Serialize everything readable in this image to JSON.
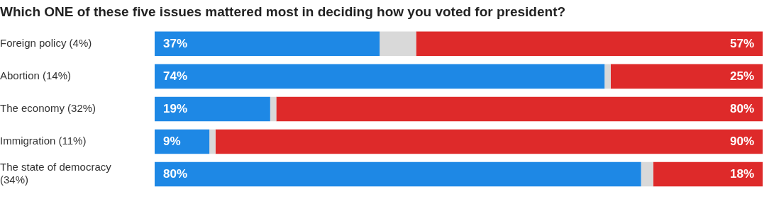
{
  "chart_data": {
    "type": "bar",
    "orientation": "horizontal",
    "stacked": true,
    "title": "Which ONE of these five issues mattered most in deciding how you voted for president?",
    "categories": [
      "Foreign policy (4%)",
      "Abortion (14%)",
      "The economy (32%)",
      "Immigration (11%)",
      "The state of democracy (34%)"
    ],
    "xlim": [
      0,
      100
    ],
    "tick_labels": "y",
    "series": [
      {
        "color": "#1e88e5",
        "values": [
          37,
          74,
          19,
          9,
          80
        ],
        "value_labels": [
          "37%",
          "74%",
          "19%",
          "9%",
          "80%"
        ]
      },
      {
        "color": "#d9d9d9",
        "values": [
          6,
          1,
          1,
          1,
          2
        ],
        "value_labels": [
          null,
          null,
          null,
          null,
          null
        ]
      },
      {
        "color": "#de2a2a",
        "values": [
          57,
          25,
          80,
          90,
          18
        ],
        "value_labels": [
          "57%",
          "25%",
          "80%",
          "90%",
          "18%"
        ]
      }
    ],
    "legend": false
  }
}
